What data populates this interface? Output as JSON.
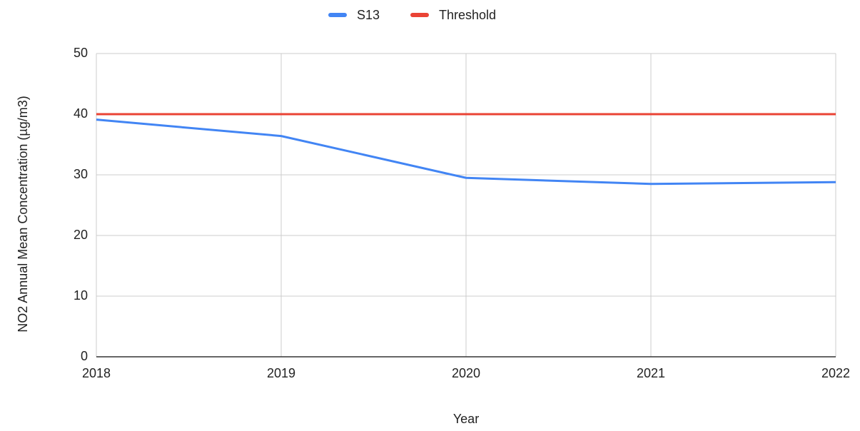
{
  "chart_data": {
    "type": "line",
    "x_label": "Year",
    "y_label": "NO2 Annual Mean Concentration (µg/m3)",
    "x": [
      2018,
      2019,
      2020,
      2021,
      2022
    ],
    "series": [
      {
        "name": "S13",
        "color": "#4285f4",
        "values": [
          39.1,
          36.4,
          29.5,
          28.5,
          28.8
        ]
      },
      {
        "name": "Threshold",
        "color": "#ea4335",
        "values": [
          40,
          40,
          40,
          40,
          40
        ]
      }
    ],
    "xlim": [
      2018,
      2022
    ],
    "xticks": [
      2018,
      2019,
      2020,
      2021,
      2022
    ],
    "ylim": [
      0,
      50
    ],
    "yticks": [
      0,
      10,
      20,
      30,
      40,
      50
    ],
    "grid": true,
    "legend": "top"
  }
}
